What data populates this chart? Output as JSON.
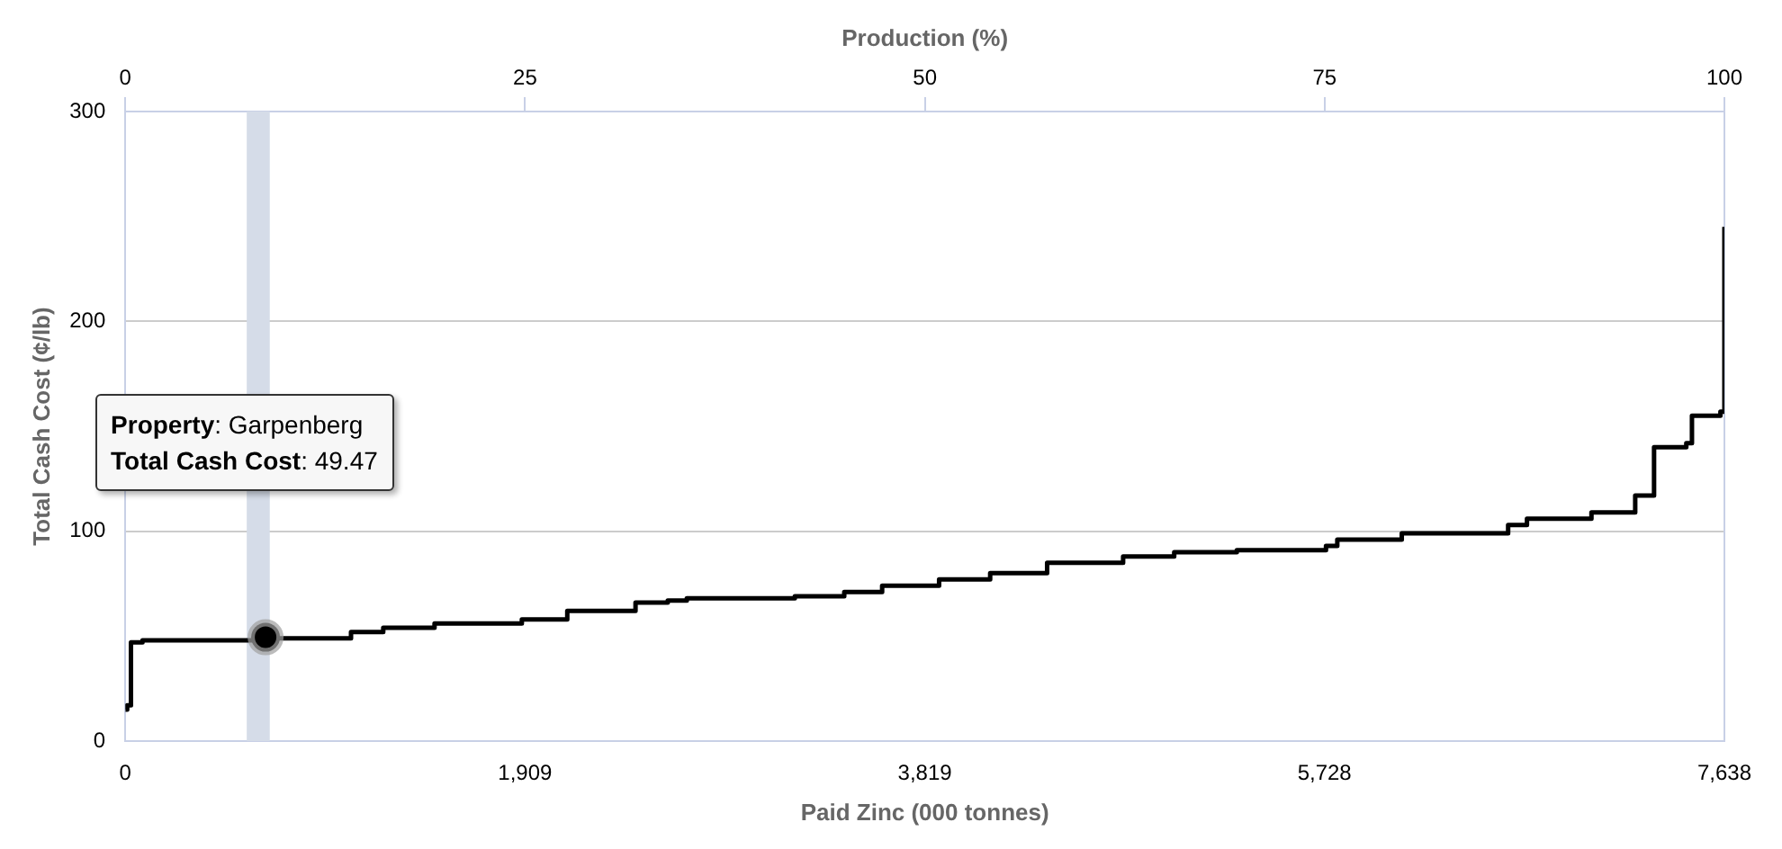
{
  "chart_data": {
    "type": "step",
    "xlabel": "Paid Zinc (000 tonnes)",
    "ylabel": "Total Cash Cost (¢/lb)",
    "x2label": "Production (%)",
    "xlim": [
      0,
      7638
    ],
    "xticks": [
      0,
      {
        "value": 1909,
        "label": "1,909"
      },
      {
        "value": 3819,
        "label": "3,819"
      },
      {
        "value": 5728,
        "label": "5,728"
      },
      {
        "value": 7638,
        "label": "7,638"
      }
    ],
    "x2lim": [
      0,
      100
    ],
    "x2ticks": [
      0,
      25,
      50,
      75,
      100
    ],
    "ylim": [
      0,
      300
    ],
    "yticks": [
      0,
      100,
      200,
      300
    ],
    "grid": "y",
    "legend": false,
    "bands": [
      {
        "axis": "x",
        "from": 580,
        "to": 690,
        "color": "#d5dce8"
      }
    ],
    "series": [
      {
        "color": "#000000",
        "marker": "none",
        "x": [
          0,
          9,
          27,
          82,
          661,
          1078,
          1232,
          1477,
          1894,
          2111,
          2437,
          2591,
          2682,
          3198,
          3434,
          3615,
          3887,
          4131,
          4403,
          4766,
          5010,
          5309,
          5735,
          5789,
          6097,
          6605,
          6695,
          7003,
          7212,
          7302,
          7456,
          7483,
          7619,
          7628,
          7638
        ],
        "values": [
          15,
          17,
          47,
          48,
          49,
          52,
          54,
          56,
          58,
          62,
          66,
          67,
          68,
          69,
          71,
          74,
          77,
          80,
          85,
          88,
          90,
          91,
          93,
          96,
          99,
          103,
          106,
          109,
          117,
          140,
          142,
          155,
          157,
          157,
          245
        ]
      },
      {
        "type": "scatter",
        "color": "#000000",
        "marker": "circle",
        "x": [
          670
        ],
        "values": [
          49.47
        ]
      }
    ],
    "annotations": [
      "Property: Garpenberg",
      "Total Cash Cost: 49.47"
    ]
  }
}
